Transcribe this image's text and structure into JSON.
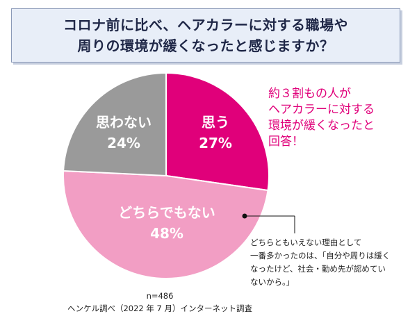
{
  "title": {
    "line1": "コロナ前に比べ、ヘアカラーに対する職場や",
    "line2": "周りの環境が緩くなったと感じますか？"
  },
  "chart_data": {
    "type": "pie",
    "slices": [
      {
        "label": "思う",
        "value": 27,
        "value_label": "27%",
        "color": "#e0007a"
      },
      {
        "label": "どちらでもない",
        "value": 48,
        "value_label": "48%",
        "color": "#f29ec4"
      },
      {
        "label": "思わない",
        "value": 24,
        "value_label": "24%",
        "color": "#9a9a9a"
      }
    ]
  },
  "callout": {
    "lines": [
      "約３割もの人が",
      "ヘアカラーに対する",
      "環境が緩くなったと",
      "回答！"
    ]
  },
  "note": {
    "lines": [
      "どちらともいえない理由として",
      "一番多かったのは、「自分や周りは緩く",
      "なったけど、社会・勤め先が認めてい",
      "ないから。」"
    ]
  },
  "footer": {
    "sample": "n=486",
    "source": "ヘンケル調べ（2022 年 7 月）インターネット調査"
  }
}
